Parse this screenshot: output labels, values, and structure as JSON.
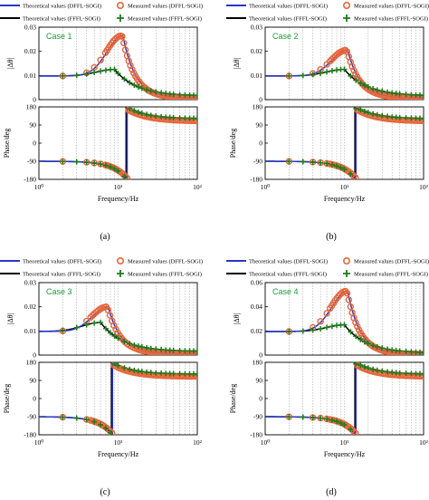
{
  "colors": {
    "theory_dffl": "#2a36c8",
    "theory_fffl": "#000000",
    "meas_dffl": "#e8663a",
    "meas_fffl": "#1d7a1d",
    "case_text": "#1a9c3a"
  },
  "legend": {
    "theory_dffl": "Theoretical values (DFFL-SOGI)",
    "theory_fffl": "Theoretical values (FFFL-SOGI)",
    "meas_dffl": "Measured values (DFFL-SOGI)",
    "meas_fffl": "Measured values (FFFL-SOGI)"
  },
  "chart_data": [
    {
      "type": "line",
      "panel": "a",
      "label": "(a)",
      "case": "Case 1",
      "mag_ylabel": "|Δθ|",
      "phase_ylabel": "Phase/deg",
      "xlabel": "Frequency/Hz",
      "x_scale": "log",
      "xlim": [
        1,
        100
      ],
      "x_ticks": [
        "10⁰",
        "10¹",
        "10²"
      ],
      "mag_ylim": [
        0,
        0.03
      ],
      "mag_ticks": [
        "0",
        "0.01",
        "0.02",
        "0.03"
      ],
      "phase_ylim": [
        -180,
        180
      ],
      "phase_ticks": [
        "-180",
        "-90",
        "0",
        "90",
        "180"
      ],
      "grid": true,
      "dffl": {
        "peak_freq_hz": 11.5,
        "peak_mag": 0.0265
      },
      "fffl": {
        "peak_freq_hz": 9,
        "peak_mag": 0.0125
      },
      "low_freq_mag": 0.0098,
      "phase_low_deg": -90,
      "phase_jump_freq_hz": 13,
      "phase_high_deg": 115
    },
    {
      "type": "line",
      "panel": "b",
      "label": "(b)",
      "case": "Case 2",
      "mag_ylabel": "|Δθ|",
      "phase_ylabel": "Phase/deg",
      "xlabel": "Frequency/Hz",
      "x_scale": "log",
      "xlim": [
        1,
        100
      ],
      "x_ticks": [
        "10⁰",
        "10¹",
        "10²"
      ],
      "mag_ylim": [
        0,
        0.03
      ],
      "mag_ticks": [
        "0",
        "0.01",
        "0.02",
        "0.03"
      ],
      "phase_ylim": [
        -180,
        180
      ],
      "phase_ticks": [
        "-180",
        "-90",
        "0",
        "90",
        "180"
      ],
      "grid": true,
      "dffl": {
        "peak_freq_hz": 11,
        "peak_mag": 0.0205
      },
      "fffl": {
        "peak_freq_hz": 10,
        "peak_mag": 0.0125
      },
      "low_freq_mag": 0.0098,
      "phase_low_deg": -90,
      "phase_jump_freq_hz": 14,
      "phase_high_deg": 115
    },
    {
      "type": "line",
      "panel": "c",
      "label": "(c)",
      "case": "Case 3",
      "mag_ylabel": "|Δθ|",
      "phase_ylabel": "Phase/deg",
      "xlabel": "Frequency/Hz",
      "x_scale": "log",
      "xlim": [
        1,
        100
      ],
      "x_ticks": [
        "10⁰",
        "10¹",
        "10²"
      ],
      "mag_ylim": [
        0,
        0.03
      ],
      "mag_ticks": [
        "0",
        "0.01",
        "0.02",
        "0.03"
      ],
      "phase_ylim": [
        -180,
        180
      ],
      "phase_ticks": [
        "-180",
        "-90",
        "0",
        "90",
        "180"
      ],
      "grid": true,
      "dffl": {
        "peak_freq_hz": 7.5,
        "peak_mag": 0.02
      },
      "fffl": {
        "peak_freq_hz": 6,
        "peak_mag": 0.0135
      },
      "low_freq_mag": 0.0098,
      "phase_low_deg": -90,
      "phase_jump_freq_hz": 8.5,
      "phase_high_deg": 115
    },
    {
      "type": "line",
      "panel": "d",
      "label": "(d)",
      "case": "Case 4",
      "mag_ylabel": "|Δθ|",
      "phase_ylabel": "Phase/deg",
      "xlabel": "Frequency/Hz",
      "x_scale": "log",
      "xlim": [
        1,
        100
      ],
      "x_ticks": [
        "10⁰",
        "10¹",
        "10²"
      ],
      "mag_ylim": [
        0,
        0.06
      ],
      "mag_ticks": [
        "0",
        "0.02",
        "0.04",
        "0.06"
      ],
      "phase_ylim": [
        -180,
        180
      ],
      "phase_ticks": [
        "-180",
        "-90",
        "0",
        "90",
        "180"
      ],
      "grid": true,
      "dffl": {
        "peak_freq_hz": 11,
        "peak_mag": 0.053
      },
      "fffl": {
        "peak_freq_hz": 10,
        "peak_mag": 0.025
      },
      "low_freq_mag": 0.0195,
      "phase_low_deg": -90,
      "phase_jump_freq_hz": 14,
      "phase_high_deg": 115
    }
  ]
}
